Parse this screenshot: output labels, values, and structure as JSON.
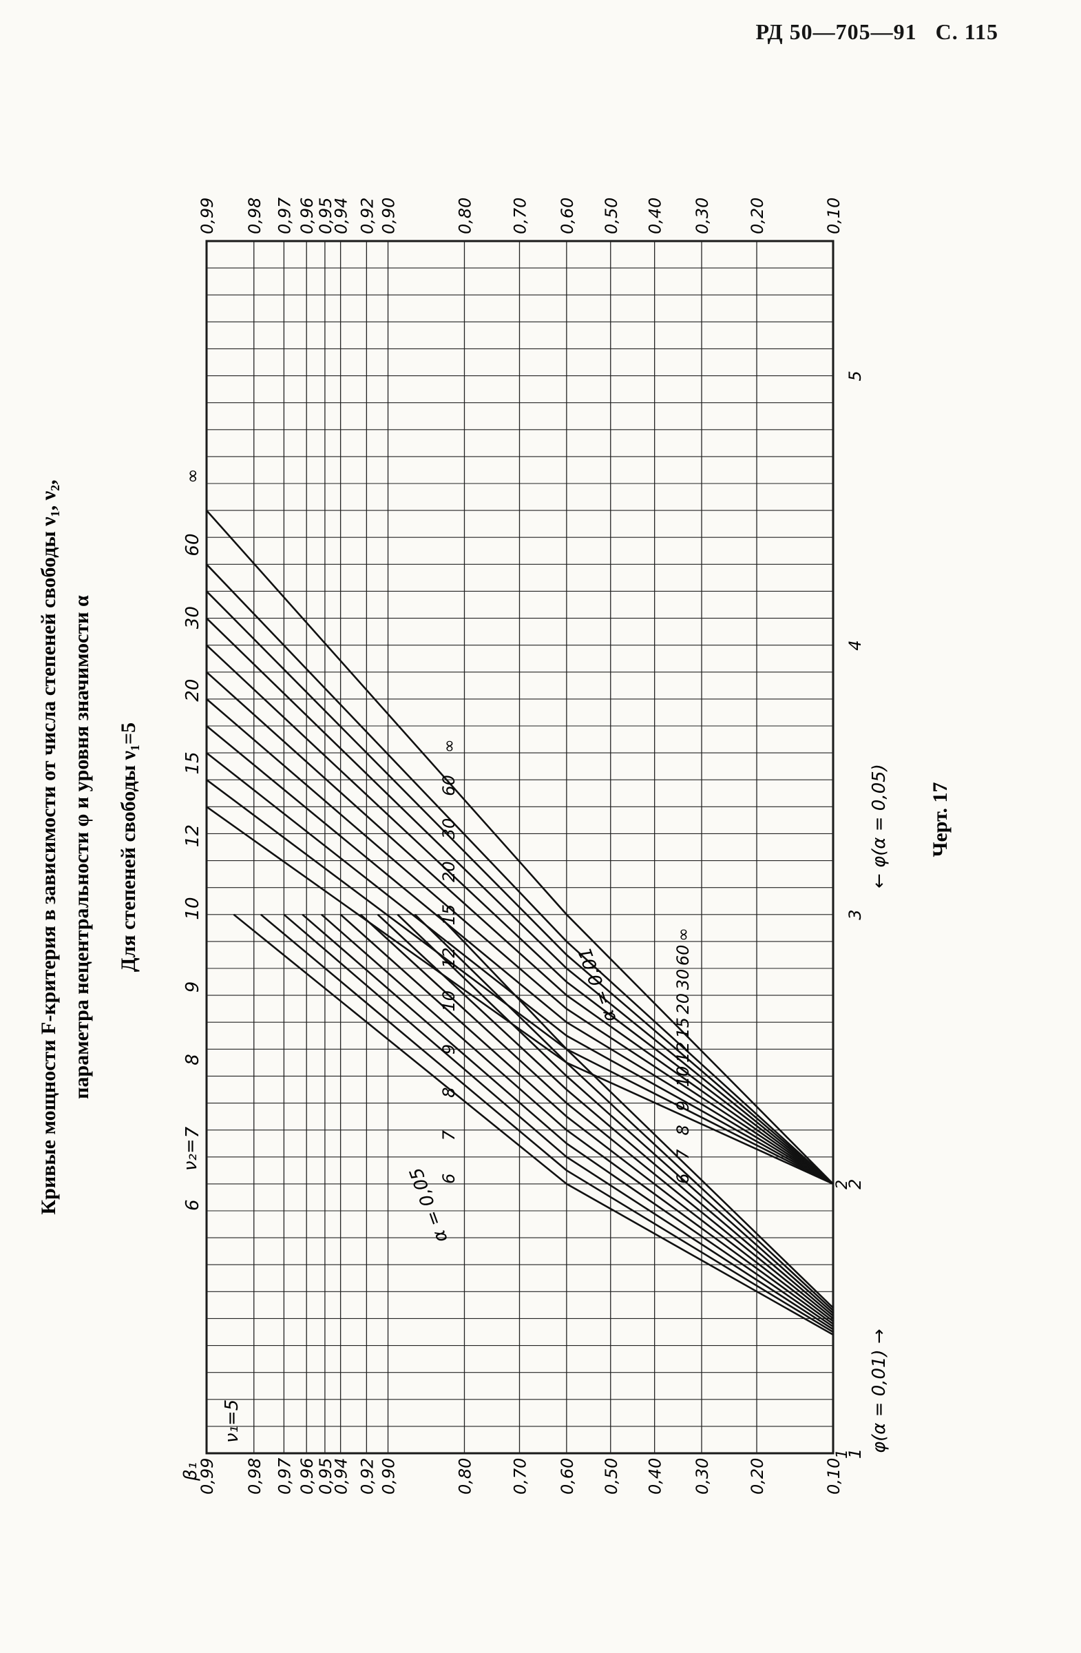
{
  "header": {
    "doc": "РД 50—705—91",
    "page": "С. 115"
  },
  "figure": {
    "title_line1": "Кривые мощности F-критерия в зависимости от числа степеней свободы ν₁, ν₂,",
    "title_line2": "параметра нецентральности φ и уровня значимости α",
    "subtitle": "Для степеней свободы ν₁=5",
    "caption": "Черт. 17",
    "nu1_label": "ν₁=5",
    "beta_label": "β₁",
    "nu2_label": "ν₂=",
    "x_axis_001": "φ(α = 0,01) →",
    "x_axis_005": "← φ(α = 0,05)",
    "alpha_005_label": "α = 0,05",
    "alpha_001_label": "α = 0,01"
  },
  "chart_data": {
    "type": "line",
    "title": "Кривые мощности F-критерия в зависимости от числа степеней свободы ν₁, ν₂, параметра нецентральности φ и уровня значимости α",
    "subtitle": "Для степеней свободы ν₁=5",
    "ylabel": "β₁",
    "y_scale": "normal-probability",
    "y_ticks": [
      "0,10",
      "0,20",
      "0,30",
      "0,40",
      "0,50",
      "0,60",
      "0,70",
      "0,80",
      "0,90",
      "0,92",
      "0,94",
      "0,95",
      "0,96",
      "0,97",
      "0,98",
      "0,99"
    ],
    "y_tick_values": [
      0.1,
      0.2,
      0.3,
      0.4,
      0.5,
      0.6,
      0.7,
      0.8,
      0.9,
      0.92,
      0.94,
      0.95,
      0.96,
      0.97,
      0.98,
      0.99
    ],
    "x_axis_001": {
      "label": "φ(α = 0,01)",
      "ticks": [
        "1",
        "2"
      ],
      "tick_values": [
        1,
        2
      ]
    },
    "x_axis_005": {
      "label": "φ(α = 0,05)",
      "ticks": [
        "1",
        "2",
        "3",
        "4",
        "5"
      ],
      "tick_values": [
        1,
        2,
        3,
        4,
        5
      ]
    },
    "grid": true,
    "nu2_values": [
      "∞",
      "60",
      "30",
      "20",
      "15",
      "12",
      "10",
      "9",
      "8",
      "7",
      "6"
    ],
    "series": [
      {
        "name": "α=0,01 ν₂=∞",
        "points": [
          [
            1.44,
            0.1
          ],
          [
            2.0,
            0.6
          ],
          [
            3.0,
            0.985
          ]
        ]
      },
      {
        "name": "α=0,01 ν₂=60",
        "points": [
          [
            1.45,
            0.1
          ],
          [
            2.05,
            0.6
          ],
          [
            3.0,
            0.978
          ]
        ]
      },
      {
        "name": "α=0,01 ν₂=30",
        "points": [
          [
            1.46,
            0.1
          ],
          [
            2.1,
            0.6
          ],
          [
            3.0,
            0.97
          ]
        ]
      },
      {
        "name": "α=0,01 ν₂=20",
        "points": [
          [
            1.47,
            0.1
          ],
          [
            2.15,
            0.6
          ],
          [
            3.0,
            0.962
          ]
        ]
      },
      {
        "name": "α=0,01 ν₂=15",
        "points": [
          [
            1.48,
            0.1
          ],
          [
            2.2,
            0.6
          ],
          [
            3.0,
            0.952
          ]
        ]
      },
      {
        "name": "α=0,01 ν₂=12",
        "points": [
          [
            1.49,
            0.1
          ],
          [
            2.25,
            0.6
          ],
          [
            3.0,
            0.94
          ]
        ]
      },
      {
        "name": "α=0,01 ν₂=10",
        "points": [
          [
            1.5,
            0.1
          ],
          [
            2.3,
            0.6
          ],
          [
            3.0,
            0.925
          ]
        ]
      },
      {
        "name": "α=0,01 ν₂=9",
        "points": [
          [
            1.51,
            0.1
          ],
          [
            2.35,
            0.6
          ],
          [
            3.0,
            0.91
          ]
        ]
      },
      {
        "name": "α=0,01 ν₂=8",
        "points": [
          [
            1.52,
            0.1
          ],
          [
            2.4,
            0.6
          ],
          [
            3.0,
            0.89
          ]
        ]
      },
      {
        "name": "α=0,01 ν₂=7",
        "points": [
          [
            1.53,
            0.1
          ],
          [
            2.45,
            0.6
          ],
          [
            3.0,
            0.87
          ]
        ]
      },
      {
        "name": "α=0,01 ν₂=6",
        "points": [
          [
            1.54,
            0.1
          ],
          [
            2.5,
            0.6
          ],
          [
            3.0,
            0.84
          ]
        ]
      },
      {
        "name": "α=0,05 ν₂=∞",
        "points": [
          [
            2.0,
            0.1
          ],
          [
            2.45,
            0.6
          ],
          [
            3.4,
            0.99
          ]
        ]
      },
      {
        "name": "α=0,05 ν₂=60",
        "points": [
          [
            2.0,
            0.1
          ],
          [
            2.5,
            0.6
          ],
          [
            3.5,
            0.99
          ]
        ]
      },
      {
        "name": "α=0,05 ν₂=30",
        "points": [
          [
            2.0,
            0.1
          ],
          [
            2.55,
            0.6
          ],
          [
            3.6,
            0.99
          ]
        ]
      },
      {
        "name": "α=0,05 ν₂=20",
        "points": [
          [
            2.0,
            0.1
          ],
          [
            2.6,
            0.6
          ],
          [
            3.7,
            0.99
          ]
        ]
      },
      {
        "name": "α=0,05 ν₂=15",
        "points": [
          [
            2.0,
            0.1
          ],
          [
            2.65,
            0.6
          ],
          [
            3.8,
            0.99
          ]
        ]
      },
      {
        "name": "α=0,05 ν₂=12",
        "points": [
          [
            2.0,
            0.1
          ],
          [
            2.7,
            0.6
          ],
          [
            3.9,
            0.99
          ]
        ]
      },
      {
        "name": "α=0,05 ν₂=10",
        "points": [
          [
            2.0,
            0.1
          ],
          [
            2.75,
            0.6
          ],
          [
            4.0,
            0.99
          ]
        ]
      },
      {
        "name": "α=0,05 ν₂=9",
        "points": [
          [
            2.0,
            0.1
          ],
          [
            2.8,
            0.6
          ],
          [
            4.1,
            0.99
          ]
        ]
      },
      {
        "name": "α=0,05 ν₂=8",
        "points": [
          [
            2.0,
            0.1
          ],
          [
            2.85,
            0.6
          ],
          [
            4.2,
            0.99
          ]
        ]
      },
      {
        "name": "α=0,05 ν₂=7",
        "points": [
          [
            2.0,
            0.1
          ],
          [
            2.9,
            0.6
          ],
          [
            4.3,
            0.99
          ]
        ]
      },
      {
        "name": "α=0,05 ν₂=6",
        "points": [
          [
            2.0,
            0.1
          ],
          [
            3.0,
            0.6
          ],
          [
            4.5,
            0.99
          ]
        ]
      }
    ]
  }
}
